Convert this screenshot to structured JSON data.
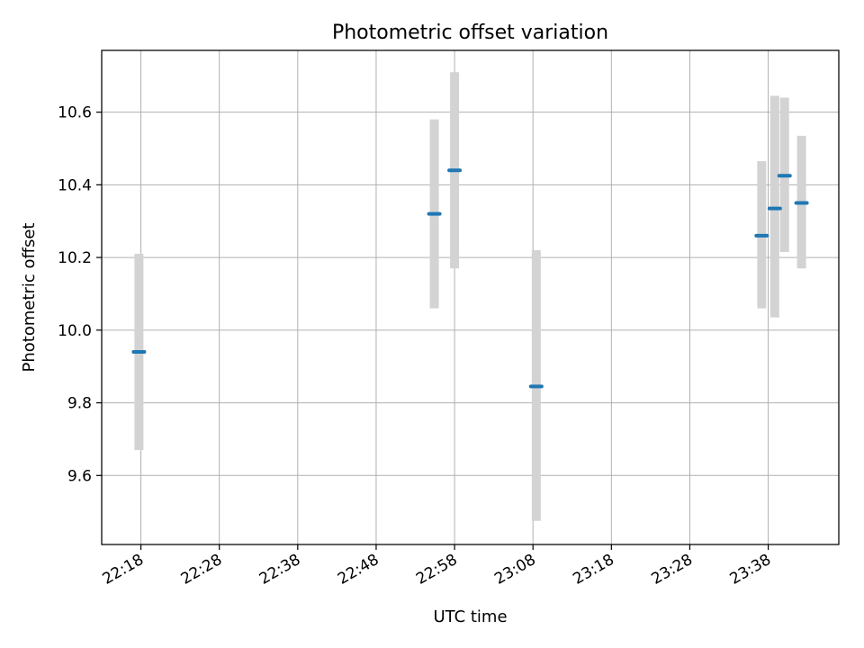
{
  "chart_data": {
    "type": "scatter",
    "title": "Photometric offset variation",
    "xlabel": "UTC time",
    "ylabel": "Photometric offset",
    "x_tick_labels": [
      "22:18",
      "22:28",
      "22:38",
      "22:48",
      "22:58",
      "23:08",
      "23:18",
      "23:28",
      "23:38"
    ],
    "y_tick_labels": [
      "9.6",
      "9.8",
      "10.0",
      "10.2",
      "10.4",
      "10.6"
    ],
    "y_ticks": [
      9.6,
      9.8,
      10.0,
      10.2,
      10.4,
      10.6
    ],
    "ylim": [
      9.41,
      10.77
    ],
    "xlim": [
      "22:13:00",
      "23:47:00"
    ],
    "grid": true,
    "marker_color": "#1f77b4",
    "errorbar_color": "#d3d3d3",
    "points": [
      {
        "x": "22:17:45",
        "y": 9.94,
        "err_low": 9.67,
        "err_high": 10.21
      },
      {
        "x": "22:55:25",
        "y": 10.32,
        "err_low": 10.06,
        "err_high": 10.58
      },
      {
        "x": "22:58:00",
        "y": 10.44,
        "err_low": 10.17,
        "err_high": 10.71
      },
      {
        "x": "23:08:25",
        "y": 9.845,
        "err_low": 9.475,
        "err_high": 10.22
      },
      {
        "x": "23:37:10",
        "y": 10.26,
        "err_low": 10.06,
        "err_high": 10.465
      },
      {
        "x": "23:38:50",
        "y": 10.335,
        "err_low": 10.035,
        "err_high": 10.645
      },
      {
        "x": "23:40:05",
        "y": 10.425,
        "err_low": 10.215,
        "err_high": 10.64
      },
      {
        "x": "23:42:15",
        "y": 10.35,
        "err_low": 10.17,
        "err_high": 10.535
      }
    ]
  }
}
